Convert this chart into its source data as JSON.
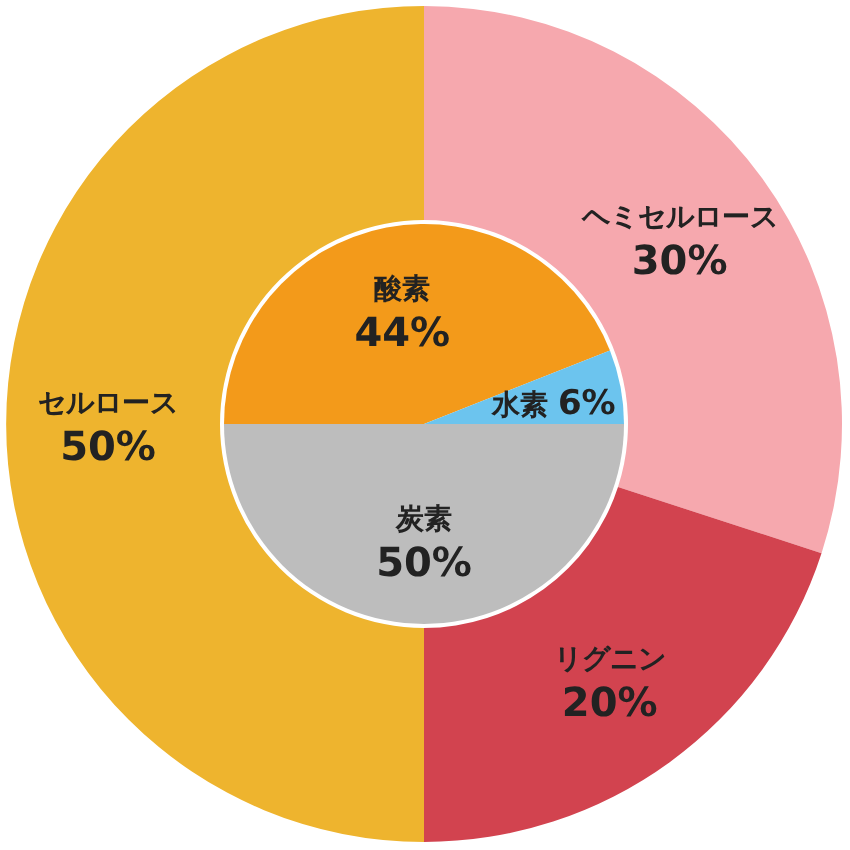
{
  "chart_data": [
    {
      "type": "donut",
      "categories": [
        "ヘミセルロース",
        "リグニン",
        "セルロース"
      ],
      "values": [
        30,
        20,
        50
      ],
      "colors": [
        "#f6a8ae",
        "#d2434f",
        "#eeb42e"
      ],
      "value_labels": [
        "30%",
        "20%",
        "50%"
      ]
    },
    {
      "type": "pie",
      "categories": [
        "酸素",
        "水素",
        "炭素"
      ],
      "values": [
        44,
        6,
        50
      ],
      "colors": [
        "#f39a1a",
        "#6cc4ee",
        "#bdbdbd"
      ],
      "value_labels": [
        "44%",
        "6%",
        "50%"
      ]
    }
  ]
}
